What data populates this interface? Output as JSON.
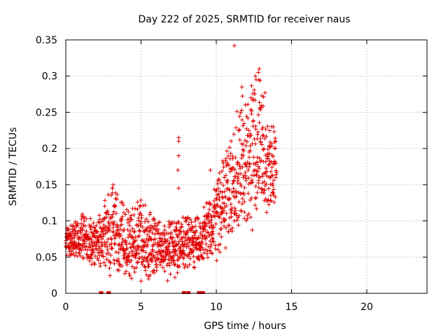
{
  "chart_data": {
    "type": "scatter",
    "title": "Day 222 of 2025, SRMTID for receiver naus",
    "xlabel": "GPS time / hours",
    "ylabel": "SRMTID / TECUs",
    "xlim": [
      0,
      24
    ],
    "ylim": [
      0,
      0.35
    ],
    "xticks": [
      0,
      5,
      10,
      15,
      20
    ],
    "xtick_labels": [
      "0",
      "5",
      "10",
      "15",
      "20"
    ],
    "yticks": [
      0,
      0.05,
      0.1,
      0.15,
      0.2,
      0.25,
      0.3,
      0.35
    ],
    "ytick_labels": [
      "0",
      "0.05",
      "0.1",
      "0.15",
      "0.2",
      "0.25",
      "0.3",
      "0.35"
    ],
    "grid": true,
    "marker": "+",
    "color": "#e00000",
    "point_count_estimate": 1400,
    "zero_markers_x": [
      2.35,
      2.85,
      7.85,
      8.15,
      8.85,
      9.0,
      9.1
    ],
    "envelope": [
      {
        "x": 0.0,
        "low": 0.05,
        "high": 0.09,
        "center": 0.075
      },
      {
        "x": 1.0,
        "low": 0.05,
        "high": 0.11,
        "center": 0.08
      },
      {
        "x": 2.0,
        "low": 0.04,
        "high": 0.1,
        "center": 0.065
      },
      {
        "x": 3.0,
        "low": 0.03,
        "high": 0.15,
        "center": 0.075
      },
      {
        "x": 4.0,
        "low": 0.03,
        "high": 0.12,
        "center": 0.065
      },
      {
        "x": 5.0,
        "low": 0.03,
        "high": 0.13,
        "center": 0.065
      },
      {
        "x": 6.0,
        "low": 0.03,
        "high": 0.1,
        "center": 0.055
      },
      {
        "x": 7.0,
        "low": 0.03,
        "high": 0.1,
        "center": 0.06
      },
      {
        "x": 8.0,
        "low": 0.04,
        "high": 0.11,
        "center": 0.07
      },
      {
        "x": 9.0,
        "low": 0.04,
        "high": 0.11,
        "center": 0.07
      },
      {
        "x": 10.0,
        "low": 0.06,
        "high": 0.16,
        "center": 0.1
      },
      {
        "x": 11.0,
        "low": 0.08,
        "high": 0.23,
        "center": 0.14
      },
      {
        "x": 12.0,
        "low": 0.1,
        "high": 0.29,
        "center": 0.18
      },
      {
        "x": 13.0,
        "low": 0.12,
        "high": 0.3,
        "center": 0.19
      },
      {
        "x": 14.0,
        "low": 0.12,
        "high": 0.21,
        "center": 0.165
      }
    ],
    "outliers": [
      {
        "x": 7.5,
        "y": 0.215
      },
      {
        "x": 7.5,
        "y": 0.21
      },
      {
        "x": 7.5,
        "y": 0.19
      },
      {
        "x": 7.45,
        "y": 0.17
      },
      {
        "x": 7.5,
        "y": 0.145
      },
      {
        "x": 11.2,
        "y": 0.342
      },
      {
        "x": 12.85,
        "y": 0.31
      },
      {
        "x": 12.8,
        "y": 0.305
      },
      {
        "x": 12.6,
        "y": 0.3
      },
      {
        "x": 12.65,
        "y": 0.295
      },
      {
        "x": 11.7,
        "y": 0.285
      },
      {
        "x": 12.3,
        "y": 0.27
      },
      {
        "x": 9.6,
        "y": 0.17
      },
      {
        "x": 3.15,
        "y": 0.15
      },
      {
        "x": 3.1,
        "y": 0.145
      },
      {
        "x": 5.5,
        "y": 0.02
      },
      {
        "x": 5.6,
        "y": 0.025
      }
    ]
  }
}
